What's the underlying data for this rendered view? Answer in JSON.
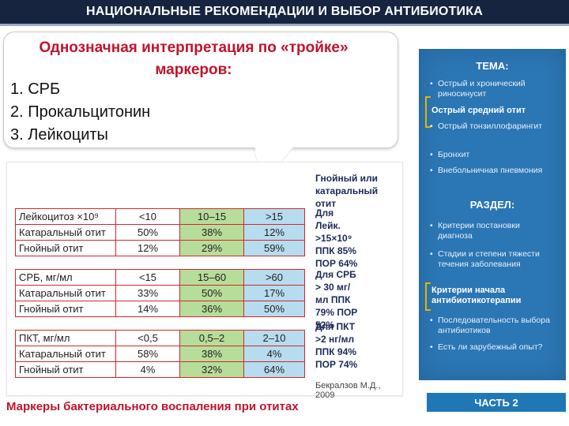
{
  "header": {
    "title": "НАЦИОНАЛЬНЫЕ РЕКОМЕНДАЦИИ И ВЫБОР АНТИБИОТИКА"
  },
  "callout": {
    "title": "Однозначная интерпретация по «тройке» маркеров:",
    "items": [
      "1. СРБ",
      "2. Прокальцитонин",
      "3. Лейкоциты"
    ]
  },
  "table": {
    "blocks": [
      {
        "rows": [
          [
            "Лейкоцитоз ×10⁹",
            "<10",
            "10–15",
            ">15"
          ],
          [
            "Катаральный отит",
            "50%",
            "38%",
            "12%"
          ],
          [
            "Гнойный отит",
            "12%",
            "29%",
            "59%"
          ]
        ]
      },
      {
        "rows": [
          [
            "СРБ, мг/мл",
            "<15",
            "15–60",
            ">60"
          ],
          [
            "Катаральный отит",
            "33%",
            "50%",
            "17%"
          ],
          [
            "Гнойный отит",
            "14%",
            "36%",
            "50%"
          ]
        ]
      },
      {
        "rows": [
          [
            "ПКТ, мг/мл",
            "<0,5",
            "0,5–2",
            "2–10"
          ],
          [
            "Катаральный отит",
            "58%",
            "38%",
            "4%"
          ],
          [
            "Гнойный отит",
            "4%",
            "32%",
            "64%"
          ]
        ]
      }
    ],
    "side_header": "Гнойный или катаральный отит",
    "side_notes": [
      "Для Лейк. >15×10⁹ ППК 85% ПОР 64%",
      "Для СРБ > 30 мг/мл ППК 79% ПОР 52%",
      "Для ПКТ >2 нг/мл ППК 94% ПОР 74%"
    ],
    "credit": "Бекралзов М.Д., 2009",
    "caption": "Маркеры бактериального воспаления при отитах"
  },
  "panel": {
    "theme_header": "ТЕМА:",
    "theme_items": [
      "Острый и хронический риносинусит",
      "Острый средний отит",
      "Острый тонзиллофарингит",
      "Бронхит",
      "Внебольничная пневмония"
    ],
    "section_header": "РАЗДЕЛ:",
    "section_items": [
      "Критерии постановки диагноза",
      "Стадии и степени тяжести течения заболевания",
      "Критерии начала антибиотикотерапии",
      "Последовательность выбора антибиотиков",
      "Есть ли зарубежный опыт?"
    ],
    "bullet": "•",
    "part_label": "ЧАСТЬ 2",
    "accent_color": "#e8b200",
    "bg_color": "#2b76b4"
  }
}
